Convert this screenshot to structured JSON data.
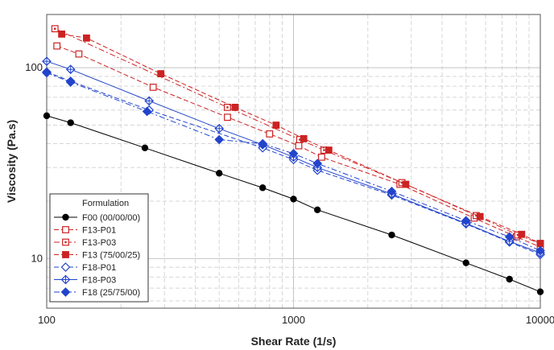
{
  "chart_data": {
    "type": "line",
    "xscale": "log",
    "yscale": "log",
    "xlabel": "Shear Rate (1/s)",
    "ylabel": "Viscosity (Pa.s)",
    "xlim": [
      100,
      10000
    ],
    "ylim": [
      5.5,
      190
    ],
    "xticks": [
      {
        "value": 100,
        "label": "100"
      },
      {
        "value": 1000,
        "label": "1000"
      },
      {
        "value": 10000,
        "label": "10000"
      }
    ],
    "yticks": [
      {
        "value": 10,
        "label": "10"
      },
      {
        "value": 100,
        "label": "100"
      }
    ],
    "grid": true,
    "legend": {
      "title": "Formulation",
      "position": "bottom-left"
    },
    "series": [
      {
        "name": "F00 (00/00/00)",
        "color": "#000000",
        "dash": "solid",
        "marker": "circle",
        "filled": true,
        "x": [
          100,
          125,
          250,
          500,
          750,
          1000,
          1250,
          2500,
          5000,
          7500,
          10000
        ],
        "y": [
          56,
          51.5,
          38,
          28,
          23.5,
          20.5,
          18,
          13.3,
          9.5,
          7.8,
          6.7
        ]
      },
      {
        "name": "F13-P01",
        "color": "#cc2222",
        "dash": "dashed",
        "marker": "square",
        "filled": false,
        "x": [
          110,
          135,
          270,
          540,
          800,
          1050,
          1300,
          2700,
          5400,
          8000,
          10000
        ],
        "y": [
          130,
          118,
          79,
          55,
          45,
          39,
          34,
          24.5,
          16.3,
          13.0,
          11.5
        ]
      },
      {
        "name": "F13-P03",
        "color": "#cc2222",
        "dash": "dashdot",
        "marker": "square-dot",
        "filled": false,
        "x": [
          108,
          540,
          1060,
          1330,
          2750,
          5500,
          8100,
          10000
        ],
        "y": [
          160,
          62,
          42,
          37,
          25,
          16.8,
          13.3,
          12.0
        ]
      },
      {
        "name": "F13 (75/00/25)",
        "color": "#cc2222",
        "dash": "dashed",
        "marker": "square",
        "filled": true,
        "x": [
          115,
          145,
          290,
          580,
          850,
          1100,
          1390,
          2850,
          5700,
          8400,
          10000
        ],
        "y": [
          150,
          143,
          93,
          62,
          50,
          42.5,
          37,
          24.5,
          16.6,
          13.4,
          12.0
        ]
      },
      {
        "name": "F18-P01",
        "color": "#2244cc",
        "dash": "dashed",
        "marker": "diamond",
        "filled": false,
        "x": [
          100,
          125,
          260,
          750,
          1000,
          1250,
          2500,
          5000,
          7500,
          10000
        ],
        "y": [
          95,
          85,
          60,
          38,
          33,
          29,
          21.5,
          15.2,
          12.2,
          10.5
        ]
      },
      {
        "name": "F18-P03",
        "color": "#2244cc",
        "dash": "solid",
        "marker": "diamond-plus",
        "filled": false,
        "x": [
          100,
          125,
          260,
          500,
          750,
          1000,
          1250,
          2500,
          5000,
          7500,
          10000
        ],
        "y": [
          108,
          98,
          67,
          48,
          39.5,
          34,
          30,
          21.8,
          15.3,
          12.3,
          10.7
        ]
      },
      {
        "name": "F18 (25/75/00)",
        "color": "#2244cc",
        "dash": "dashdot",
        "marker": "diamond",
        "filled": true,
        "x": [
          100,
          125,
          255,
          500,
          750,
          1000,
          1250,
          2500,
          5000,
          7500,
          10000
        ],
        "y": [
          94,
          84,
          59,
          42,
          40,
          35.5,
          31.5,
          22.5,
          15.8,
          13.0,
          11.0
        ]
      }
    ]
  }
}
